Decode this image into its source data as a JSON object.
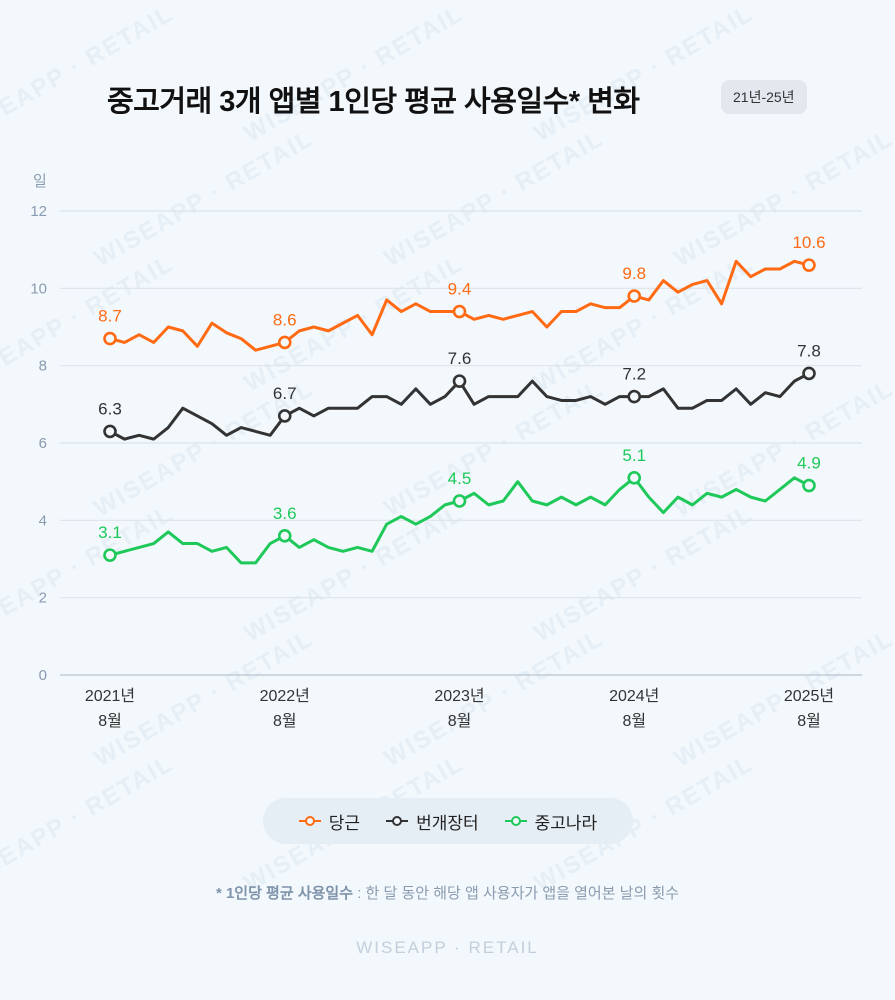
{
  "title": "중고거래 3개 앱별 1인당 평균 사용일수* 변화",
  "period_badge": "21년-25년",
  "footnote": {
    "term": "* 1인당 평균 사용일수",
    "desc": " : 한 달 동안 해당 앱 사용자가 앱을 열어본 날의 횟수"
  },
  "brand": "WISEAPP · RETAIL",
  "watermark": "WISEAPP · RETAIL",
  "chart_data": {
    "type": "line",
    "title": "중고거래 3개 앱별 1인당 평균 사용일수* 변화",
    "ylabel": "일",
    "ylim": [
      0,
      12
    ],
    "yticks": [
      "0",
      "2",
      "4",
      "6",
      "8",
      "10",
      "12"
    ],
    "grid": true,
    "x_start": "2021-08",
    "x_end": "2025-08",
    "x_tick_labels": [
      {
        "year": "2021년",
        "month": "8월",
        "index": 0
      },
      {
        "year": "2022년",
        "month": "8월",
        "index": 12
      },
      {
        "year": "2023년",
        "month": "8월",
        "index": 24
      },
      {
        "year": "2024년",
        "month": "8월",
        "index": 36
      },
      {
        "year": "2025년",
        "month": "8월",
        "index": 48
      }
    ],
    "legend_position": "bottom",
    "series": [
      {
        "name": "당근",
        "color": "#ff6a13",
        "values": [
          8.7,
          8.6,
          8.8,
          8.6,
          9.0,
          8.9,
          8.5,
          9.1,
          8.85,
          8.7,
          8.4,
          8.5,
          8.6,
          8.9,
          9.0,
          8.9,
          9.1,
          9.3,
          8.8,
          9.7,
          9.4,
          9.6,
          9.4,
          9.4,
          9.4,
          9.2,
          9.3,
          9.2,
          9.3,
          9.4,
          9.0,
          9.4,
          9.4,
          9.6,
          9.5,
          9.5,
          9.8,
          9.7,
          10.2,
          9.9,
          10.1,
          10.2,
          9.6,
          10.7,
          10.3,
          10.5,
          10.5,
          10.7,
          10.6
        ],
        "labels": [
          "8.7",
          "8.6",
          "9.4",
          "9.8",
          "10.6"
        ]
      },
      {
        "name": "번개장터",
        "color": "#333333",
        "values": [
          6.3,
          6.1,
          6.2,
          6.1,
          6.4,
          6.9,
          6.7,
          6.5,
          6.2,
          6.4,
          6.3,
          6.2,
          6.7,
          6.9,
          6.7,
          6.9,
          6.9,
          6.9,
          7.2,
          7.2,
          7.0,
          7.4,
          7.0,
          7.2,
          7.6,
          7.0,
          7.2,
          7.2,
          7.2,
          7.6,
          7.2,
          7.1,
          7.1,
          7.2,
          7.0,
          7.2,
          7.2,
          7.2,
          7.4,
          6.9,
          6.9,
          7.1,
          7.1,
          7.4,
          7.0,
          7.3,
          7.2,
          7.6,
          7.8
        ],
        "labels": [
          "6.3",
          "6.7",
          "7.6",
          "7.2",
          "7.8"
        ]
      },
      {
        "name": "중고나라",
        "color": "#1ec95a",
        "values": [
          3.1,
          3.2,
          3.3,
          3.4,
          3.7,
          3.4,
          3.4,
          3.2,
          3.3,
          2.9,
          2.9,
          3.4,
          3.6,
          3.3,
          3.5,
          3.3,
          3.2,
          3.3,
          3.2,
          3.9,
          4.1,
          3.9,
          4.1,
          4.4,
          4.5,
          4.7,
          4.4,
          4.5,
          5.0,
          4.5,
          4.4,
          4.6,
          4.4,
          4.6,
          4.4,
          4.8,
          5.1,
          4.6,
          4.2,
          4.6,
          4.4,
          4.7,
          4.6,
          4.8,
          4.6,
          4.5,
          4.8,
          5.1,
          4.9
        ],
        "labels": [
          "3.1",
          "3.6",
          "4.5",
          "5.1",
          "4.9"
        ]
      }
    ]
  }
}
